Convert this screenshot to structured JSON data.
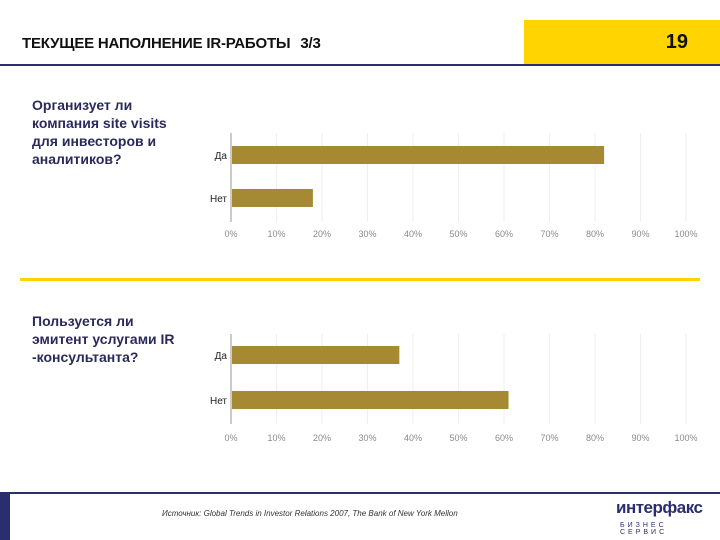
{
  "header": {
    "title": "ТЕКУЩЕЕ НАПОЛНЕНИЕ IR-РАБОТЫ",
    "subtitle": "3/3",
    "page_number": "19"
  },
  "colors": {
    "bar": "#a68a33",
    "accent": "#ffd400",
    "brand": "#2b2e6e"
  },
  "chart_data": [
    {
      "type": "bar",
      "orientation": "horizontal",
      "title": "Организует ли компания site visits для инвесторов и аналитиков?",
      "categories": [
        "Да",
        "Нет"
      ],
      "values": [
        82,
        18
      ],
      "xlim": [
        0,
        100
      ],
      "xticks": [
        "0%",
        "10%",
        "20%",
        "30%",
        "40%",
        "50%",
        "60%",
        "70%",
        "80%",
        "90%",
        "100%"
      ],
      "grid": true
    },
    {
      "type": "bar",
      "orientation": "horizontal",
      "title": "Пользуется ли эмитент услугами IR -консультанта?",
      "categories": [
        "Да",
        "Нет"
      ],
      "values": [
        37,
        61
      ],
      "xlim": [
        0,
        100
      ],
      "xticks": [
        "0%",
        "10%",
        "20%",
        "30%",
        "40%",
        "50%",
        "60%",
        "70%",
        "80%",
        "90%",
        "100%"
      ],
      "grid": true
    }
  ],
  "footer": {
    "source": "Источник: Global Trends in Investor Relations 2007, The Bank of New York Mellon",
    "logo_main": "интерфакс",
    "logo_sub": "БИЗНЕС СЕРВИС"
  }
}
